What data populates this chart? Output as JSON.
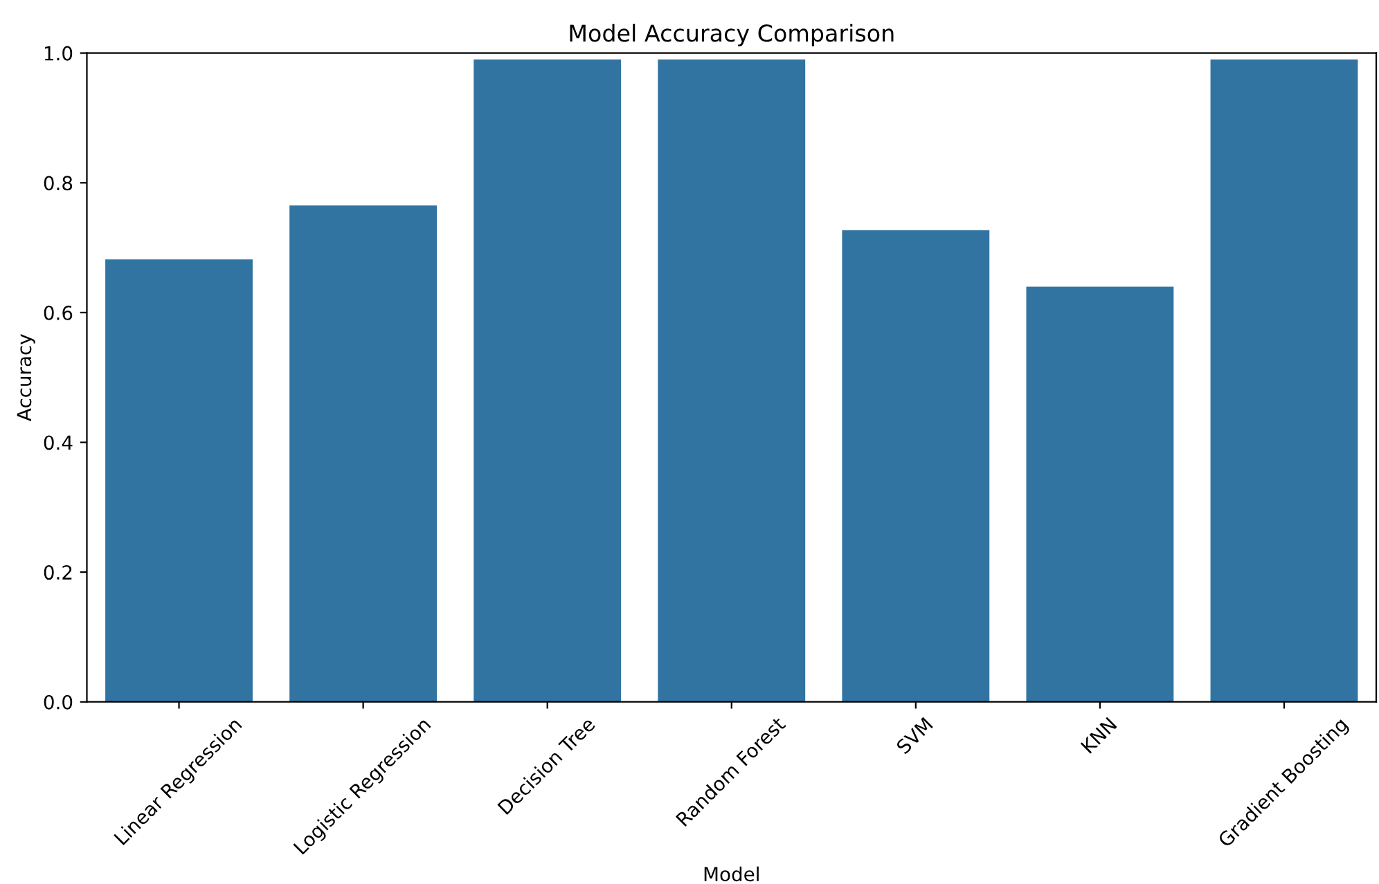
{
  "chart_data": {
    "type": "bar",
    "title": "Model Accuracy Comparison",
    "xlabel": "Model",
    "ylabel": "Accuracy",
    "categories": [
      "Linear Regression",
      "Logistic Regression",
      "Decision Tree",
      "Random Forest",
      "SVM",
      "KNN",
      "Gradient Boosting"
    ],
    "values": [
      0.682,
      0.765,
      0.99,
      0.99,
      0.727,
      0.64,
      0.99
    ],
    "color": "#3274a1",
    "ylim": [
      0,
      1.0
    ],
    "yticks": [
      {
        "value": 0,
        "label": "0.0"
      },
      0.2,
      0.4,
      0.6,
      0.8,
      {
        "value": 1,
        "label": "1.0"
      }
    ],
    "grid": false
  }
}
